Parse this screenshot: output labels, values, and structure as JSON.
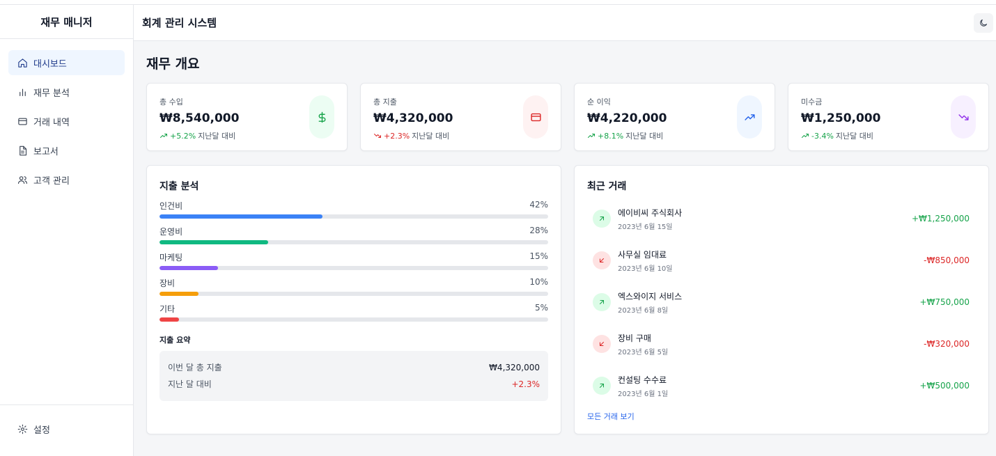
{
  "sidebar": {
    "brand": "재무 매니저",
    "items": [
      {
        "label": "대시보드",
        "icon": "home-icon",
        "active": true
      },
      {
        "label": "재무 분석",
        "icon": "bar-chart-icon",
        "active": false
      },
      {
        "label": "거래 내역",
        "icon": "credit-card-icon",
        "active": false
      },
      {
        "label": "보고서",
        "icon": "file-icon",
        "active": false
      },
      {
        "label": "고객 관리",
        "icon": "users-icon",
        "active": false
      }
    ],
    "settings_label": "설정"
  },
  "header": {
    "title": "회계 관리 시스템",
    "theme_toggle_icon": "moon-icon"
  },
  "main": {
    "title": "재무 개요",
    "stats": [
      {
        "label": "총 수입",
        "value": "₩8,540,000",
        "change": "+5.2%",
        "suffix": "지난달 대비",
        "icon": "dollar-icon",
        "color": "#16a34a",
        "bg": "#ecfdf3"
      },
      {
        "label": "총 지출",
        "value": "₩4,320,000",
        "change": "+2.3%",
        "suffix": "지난달 대비",
        "icon": "credit-card-icon",
        "color": "#dc2626",
        "bg": "#fef2f2"
      },
      {
        "label": "순 이익",
        "value": "₩4,220,000",
        "change": "+8.1%",
        "suffix": "지난달 대비",
        "icon": "trending-up-icon",
        "color": "#2563eb",
        "bg": "#eff6ff"
      },
      {
        "label": "미수금",
        "value": "₩1,250,000",
        "change": "-3.4%",
        "suffix": "지난달 대비",
        "icon": "trending-down-icon",
        "color": "#9333ea",
        "bg": "#f7f0ff"
      }
    ],
    "expense": {
      "title": "지출 분석",
      "items": [
        {
          "label": "인건비",
          "percent": 42,
          "percent_label": "42%",
          "color": "#3b82f6"
        },
        {
          "label": "운영비",
          "percent": 28,
          "percent_label": "28%",
          "color": "#10b981"
        },
        {
          "label": "마케팅",
          "percent": 15,
          "percent_label": "15%",
          "color": "#8b5cf6"
        },
        {
          "label": "장비",
          "percent": 10,
          "percent_label": "10%",
          "color": "#f59e0b"
        },
        {
          "label": "기타",
          "percent": 5,
          "percent_label": "5%",
          "color": "#ef4444"
        }
      ],
      "summary_title": "지출 요약",
      "summary": {
        "total_label": "이번 달 총 지출",
        "total_value": "₩4,320,000",
        "compare_label": "지난 달 대비",
        "compare_value": "+2.3%"
      }
    },
    "transactions": {
      "title": "최근 거래",
      "items": [
        {
          "name": "에이비씨 주식회사",
          "date": "2023년 6월 15일",
          "amount": "+₩1,250,000",
          "type": "in"
        },
        {
          "name": "사무실 임대료",
          "date": "2023년 6월 10일",
          "amount": "-₩850,000",
          "type": "out"
        },
        {
          "name": "엑스와이지 서비스",
          "date": "2023년 6월 8일",
          "amount": "+₩750,000",
          "type": "in"
        },
        {
          "name": "장비 구매",
          "date": "2023년 6월 5일",
          "amount": "-₩320,000",
          "type": "out"
        },
        {
          "name": "컨설팅 수수료",
          "date": "2023년 6월 1일",
          "amount": "+₩500,000",
          "type": "in"
        }
      ],
      "view_all": "모든 거래 보기"
    }
  }
}
